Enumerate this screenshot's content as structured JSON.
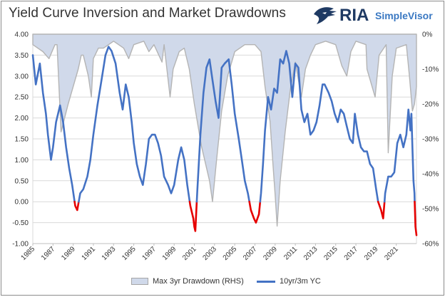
{
  "title": "Yield Curve Inversion and Market Drawdowns",
  "logo": {
    "brand": "RIA",
    "product": "SimpleVisor"
  },
  "colors": {
    "yield_line": "#4472c4",
    "inversion": "#e60000",
    "drawdown_fill": "#d0d9ea",
    "drawdown_stroke": "#b4b4b4"
  },
  "chart_data": {
    "type": "line",
    "x_tick_labels": [
      "1985",
      "1987",
      "1989",
      "1991",
      "1993",
      "1995",
      "1997",
      "1999",
      "2001",
      "2003",
      "2005",
      "2007",
      "2009",
      "2011",
      "2013",
      "2015",
      "2017",
      "2019",
      "2021"
    ],
    "y_left": {
      "ticks": [
        "4.00",
        "3.50",
        "3.00",
        "2.50",
        "2.00",
        "1.50",
        "1.00",
        "0.50",
        "0.00",
        "-0.50",
        "-1.00"
      ],
      "range": [
        -1.0,
        4.0
      ]
    },
    "y_right": {
      "ticks": [
        "0%",
        "-10%",
        "-20%",
        "-30%",
        "-40%",
        "-50%",
        "-60%"
      ],
      "range": [
        -60,
        0
      ]
    },
    "grid": true,
    "legend_position": "bottom",
    "series": [
      {
        "name": "Max 3yr Drawdown (RHS)",
        "kind": "area",
        "axis": "right",
        "points": [
          [
            1985.0,
            -3
          ],
          [
            1986.0,
            -5
          ],
          [
            1986.6,
            -7
          ],
          [
            1987.2,
            -3
          ],
          [
            1987.4,
            -3
          ],
          [
            1987.8,
            -28
          ],
          [
            1988.5,
            -20
          ],
          [
            1989.5,
            -10
          ],
          [
            1989.8,
            -6
          ],
          [
            1990.0,
            -6
          ],
          [
            1990.5,
            -12
          ],
          [
            1990.8,
            -18
          ],
          [
            1991.0,
            -7
          ],
          [
            1991.5,
            -4
          ],
          [
            1992.0,
            -4
          ],
          [
            1993.0,
            -2
          ],
          [
            1994.0,
            -4
          ],
          [
            1994.5,
            -7
          ],
          [
            1995.0,
            -3
          ],
          [
            1996.0,
            -2
          ],
          [
            1996.5,
            -5
          ],
          [
            1997.0,
            -3
          ],
          [
            1997.8,
            -8
          ],
          [
            1998.0,
            -3
          ],
          [
            1998.6,
            -18
          ],
          [
            1998.9,
            -10
          ],
          [
            1999.5,
            -5
          ],
          [
            2000.0,
            -4
          ],
          [
            2000.5,
            -10
          ],
          [
            2001.0,
            -20
          ],
          [
            2001.7,
            -32
          ],
          [
            2002.5,
            -42
          ],
          [
            2002.8,
            -48
          ],
          [
            2003.2,
            -36
          ],
          [
            2003.7,
            -22
          ],
          [
            2004.3,
            -12
          ],
          [
            2005.0,
            -5
          ],
          [
            2006.0,
            -3
          ],
          [
            2007.0,
            -3
          ],
          [
            2007.6,
            -5
          ],
          [
            2008.0,
            -15
          ],
          [
            2008.5,
            -25
          ],
          [
            2008.8,
            -38
          ],
          [
            2009.0,
            -46
          ],
          [
            2009.2,
            -55
          ],
          [
            2009.5,
            -42
          ],
          [
            2010.0,
            -28
          ],
          [
            2010.5,
            -16
          ],
          [
            2011.0,
            -8
          ],
          [
            2011.6,
            -18
          ],
          [
            2012.0,
            -10
          ],
          [
            2012.5,
            -6
          ],
          [
            2013.0,
            -3
          ],
          [
            2014.0,
            -2
          ],
          [
            2015.0,
            -3
          ],
          [
            2015.6,
            -9
          ],
          [
            2016.1,
            -12
          ],
          [
            2016.5,
            -5
          ],
          [
            2017.0,
            -2
          ],
          [
            2018.0,
            -3
          ],
          [
            2018.1,
            -10
          ],
          [
            2018.9,
            -18
          ],
          [
            2019.3,
            -6
          ],
          [
            2020.0,
            -3
          ],
          [
            2020.2,
            -34
          ],
          [
            2020.6,
            -12
          ],
          [
            2021.0,
            -4
          ],
          [
            2022.0,
            -3
          ],
          [
            2022.3,
            -12
          ],
          [
            2022.6,
            -22
          ],
          [
            2022.8,
            -20
          ],
          [
            2023.0,
            -15
          ]
        ]
      },
      {
        "name": "10yr/3m YC",
        "kind": "line",
        "axis": "left",
        "points": [
          [
            1985.0,
            3.5
          ],
          [
            1985.3,
            2.8
          ],
          [
            1985.7,
            3.3
          ],
          [
            1986.0,
            2.6
          ],
          [
            1986.3,
            2.1
          ],
          [
            1986.5,
            1.6
          ],
          [
            1986.8,
            1.0
          ],
          [
            1987.0,
            1.3
          ],
          [
            1987.3,
            1.9
          ],
          [
            1987.7,
            2.3
          ],
          [
            1988.0,
            1.9
          ],
          [
            1988.3,
            1.3
          ],
          [
            1988.6,
            0.8
          ],
          [
            1988.9,
            0.4
          ],
          [
            1989.2,
            -0.1
          ],
          [
            1989.4,
            -0.2
          ],
          [
            1989.7,
            0.2
          ],
          [
            1990.0,
            0.3
          ],
          [
            1990.4,
            0.6
          ],
          [
            1990.7,
            1.0
          ],
          [
            1991.0,
            1.6
          ],
          [
            1991.4,
            2.3
          ],
          [
            1991.8,
            2.9
          ],
          [
            1992.2,
            3.5
          ],
          [
            1992.5,
            3.7
          ],
          [
            1992.8,
            3.6
          ],
          [
            1993.2,
            3.3
          ],
          [
            1993.6,
            2.6
          ],
          [
            1993.9,
            2.2
          ],
          [
            1994.2,
            2.8
          ],
          [
            1994.5,
            2.5
          ],
          [
            1994.8,
            1.9
          ],
          [
            1995.0,
            1.4
          ],
          [
            1995.3,
            0.9
          ],
          [
            1995.6,
            0.6
          ],
          [
            1995.9,
            0.4
          ],
          [
            1996.2,
            0.9
          ],
          [
            1996.5,
            1.5
          ],
          [
            1996.8,
            1.6
          ],
          [
            1997.1,
            1.6
          ],
          [
            1997.4,
            1.4
          ],
          [
            1997.7,
            1.1
          ],
          [
            1998.0,
            0.6
          ],
          [
            1998.4,
            0.4
          ],
          [
            1998.7,
            0.2
          ],
          [
            1999.0,
            0.4
          ],
          [
            1999.4,
            1.0
          ],
          [
            1999.7,
            1.3
          ],
          [
            2000.0,
            1.0
          ],
          [
            2000.3,
            0.4
          ],
          [
            2000.6,
            -0.1
          ],
          [
            2000.9,
            -0.4
          ],
          [
            2001.0,
            -0.6
          ],
          [
            2001.1,
            -0.7
          ],
          [
            2001.3,
            0.3
          ],
          [
            2001.6,
            1.6
          ],
          [
            2001.9,
            2.6
          ],
          [
            2002.2,
            3.2
          ],
          [
            2002.5,
            3.4
          ],
          [
            2002.8,
            2.9
          ],
          [
            2003.1,
            2.4
          ],
          [
            2003.4,
            2.0
          ],
          [
            2003.7,
            3.2
          ],
          [
            2004.0,
            3.3
          ],
          [
            2004.4,
            3.4
          ],
          [
            2004.7,
            2.8
          ],
          [
            2005.0,
            2.1
          ],
          [
            2005.4,
            1.5
          ],
          [
            2005.7,
            1.0
          ],
          [
            2006.0,
            0.5
          ],
          [
            2006.3,
            0.2
          ],
          [
            2006.6,
            -0.2
          ],
          [
            2006.9,
            -0.4
          ],
          [
            2007.1,
            -0.5
          ],
          [
            2007.4,
            -0.3
          ],
          [
            2007.6,
            0.2
          ],
          [
            2007.8,
            0.9
          ],
          [
            2008.0,
            1.7
          ],
          [
            2008.3,
            2.5
          ],
          [
            2008.6,
            2.2
          ],
          [
            2008.9,
            2.7
          ],
          [
            2009.2,
            2.6
          ],
          [
            2009.5,
            3.4
          ],
          [
            2009.8,
            3.3
          ],
          [
            2010.1,
            3.6
          ],
          [
            2010.4,
            3.3
          ],
          [
            2010.7,
            2.5
          ],
          [
            2011.0,
            3.3
          ],
          [
            2011.3,
            3.2
          ],
          [
            2011.6,
            2.2
          ],
          [
            2011.9,
            1.9
          ],
          [
            2012.2,
            2.1
          ],
          [
            2012.5,
            1.6
          ],
          [
            2012.8,
            1.7
          ],
          [
            2013.1,
            1.9
          ],
          [
            2013.4,
            2.3
          ],
          [
            2013.7,
            2.8
          ],
          [
            2013.9,
            2.8
          ],
          [
            2014.3,
            2.6
          ],
          [
            2014.6,
            2.4
          ],
          [
            2014.9,
            2.1
          ],
          [
            2015.2,
            1.9
          ],
          [
            2015.5,
            2.2
          ],
          [
            2015.8,
            2.1
          ],
          [
            2016.1,
            1.8
          ],
          [
            2016.4,
            1.5
          ],
          [
            2016.7,
            1.4
          ],
          [
            2016.9,
            2.1
          ],
          [
            2017.2,
            1.6
          ],
          [
            2017.5,
            1.3
          ],
          [
            2017.8,
            1.2
          ],
          [
            2018.1,
            1.2
          ],
          [
            2018.4,
            0.9
          ],
          [
            2018.7,
            0.8
          ],
          [
            2019.0,
            0.3
          ],
          [
            2019.2,
            0.0
          ],
          [
            2019.5,
            -0.2
          ],
          [
            2019.7,
            -0.4
          ],
          [
            2019.9,
            0.2
          ],
          [
            2020.2,
            0.6
          ],
          [
            2020.5,
            0.6
          ],
          [
            2020.8,
            0.7
          ],
          [
            2021.1,
            1.4
          ],
          [
            2021.4,
            1.6
          ],
          [
            2021.7,
            1.3
          ],
          [
            2022.0,
            1.6
          ],
          [
            2022.2,
            2.2
          ],
          [
            2022.4,
            1.7
          ],
          [
            2022.5,
            2.1
          ],
          [
            2022.6,
            1.3
          ],
          [
            2022.7,
            0.5
          ],
          [
            2022.8,
            0.2
          ],
          [
            2022.9,
            -0.6
          ],
          [
            2023.0,
            -0.8
          ]
        ]
      }
    ]
  }
}
